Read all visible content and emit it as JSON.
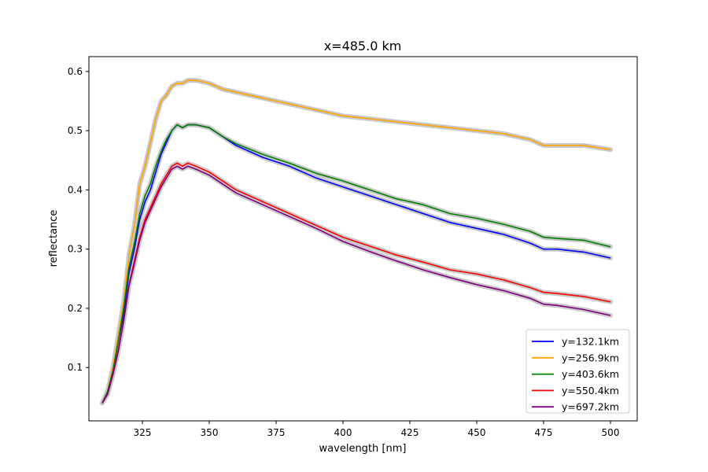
{
  "chart_data": {
    "type": "line",
    "title": "x=485.0 km",
    "xlabel": "wavelength [nm]",
    "ylabel": "reflectance",
    "xlim": [
      305,
      510
    ],
    "ylim": [
      0.01,
      0.625
    ],
    "xticks": [
      325,
      350,
      375,
      400,
      425,
      450,
      475,
      500
    ],
    "yticks": [
      0.1,
      0.2,
      0.3,
      0.4,
      0.5,
      0.6
    ],
    "xtick_labels": [
      "325",
      "350",
      "375",
      "400",
      "425",
      "450",
      "475",
      "500"
    ],
    "ytick_labels": [
      "0.1",
      "0.2",
      "0.3",
      "0.4",
      "0.5",
      "0.6"
    ],
    "grid": false,
    "legend_position": "lower-right",
    "uncertainty_band_color": "#c8c8c8",
    "series": [
      {
        "name": "y=132.1km",
        "color": "#0000ff",
        "x": [
          310,
          312,
          314,
          316,
          318,
          320,
          322,
          324,
          326,
          328,
          330,
          332,
          334,
          336,
          338,
          340,
          342,
          345,
          350,
          355,
          360,
          370,
          380,
          390,
          400,
          410,
          420,
          430,
          440,
          450,
          460,
          470,
          475,
          480,
          490,
          500
        ],
        "y": [
          0.04,
          0.06,
          0.095,
          0.145,
          0.19,
          0.26,
          0.3,
          0.35,
          0.38,
          0.4,
          0.43,
          0.46,
          0.48,
          0.5,
          0.51,
          0.505,
          0.51,
          0.51,
          0.505,
          0.49,
          0.475,
          0.455,
          0.44,
          0.42,
          0.405,
          0.39,
          0.375,
          0.36,
          0.345,
          0.335,
          0.325,
          0.31,
          0.3,
          0.3,
          0.295,
          0.285
        ]
      },
      {
        "name": "y=256.9km",
        "color": "#ffa500",
        "x": [
          310,
          312,
          314,
          316,
          318,
          320,
          322,
          324,
          326,
          328,
          330,
          332,
          334,
          336,
          338,
          340,
          342,
          345,
          350,
          355,
          360,
          370,
          380,
          390,
          400,
          410,
          420,
          430,
          440,
          450,
          460,
          470,
          475,
          480,
          490,
          500
        ],
        "y": [
          0.04,
          0.06,
          0.1,
          0.155,
          0.21,
          0.29,
          0.34,
          0.41,
          0.44,
          0.48,
          0.52,
          0.55,
          0.56,
          0.575,
          0.58,
          0.58,
          0.585,
          0.585,
          0.58,
          0.57,
          0.565,
          0.555,
          0.545,
          0.535,
          0.525,
          0.52,
          0.515,
          0.51,
          0.505,
          0.5,
          0.495,
          0.485,
          0.475,
          0.475,
          0.475,
          0.468
        ]
      },
      {
        "name": "y=403.6km",
        "color": "#008000",
        "x": [
          310,
          312,
          314,
          316,
          318,
          320,
          322,
          324,
          326,
          328,
          330,
          332,
          334,
          336,
          338,
          340,
          342,
          345,
          350,
          355,
          360,
          370,
          380,
          390,
          400,
          410,
          420,
          430,
          440,
          450,
          460,
          470,
          475,
          480,
          490,
          500
        ],
        "y": [
          0.04,
          0.06,
          0.095,
          0.145,
          0.2,
          0.27,
          0.31,
          0.36,
          0.39,
          0.41,
          0.44,
          0.465,
          0.485,
          0.5,
          0.51,
          0.505,
          0.51,
          0.51,
          0.505,
          0.49,
          0.478,
          0.46,
          0.445,
          0.428,
          0.415,
          0.4,
          0.385,
          0.375,
          0.36,
          0.352,
          0.342,
          0.33,
          0.32,
          0.318,
          0.315,
          0.304
        ]
      },
      {
        "name": "y=550.4km",
        "color": "#ff0000",
        "x": [
          310,
          312,
          314,
          316,
          318,
          320,
          322,
          324,
          326,
          328,
          330,
          332,
          334,
          336,
          338,
          340,
          342,
          345,
          350,
          355,
          360,
          370,
          380,
          390,
          400,
          410,
          420,
          430,
          440,
          450,
          460,
          470,
          475,
          480,
          490,
          500
        ],
        "y": [
          0.04,
          0.055,
          0.09,
          0.13,
          0.18,
          0.24,
          0.28,
          0.32,
          0.35,
          0.37,
          0.39,
          0.41,
          0.425,
          0.44,
          0.445,
          0.44,
          0.445,
          0.44,
          0.43,
          0.415,
          0.4,
          0.38,
          0.36,
          0.34,
          0.32,
          0.305,
          0.29,
          0.278,
          0.265,
          0.258,
          0.248,
          0.235,
          0.227,
          0.225,
          0.22,
          0.211
        ]
      },
      {
        "name": "y=697.2km",
        "color": "#800080",
        "x": [
          310,
          312,
          314,
          316,
          318,
          320,
          322,
          324,
          326,
          328,
          330,
          332,
          334,
          336,
          338,
          340,
          342,
          345,
          350,
          355,
          360,
          370,
          380,
          390,
          400,
          410,
          420,
          430,
          440,
          450,
          460,
          470,
          475,
          480,
          490,
          500
        ],
        "y": [
          0.04,
          0.055,
          0.088,
          0.128,
          0.178,
          0.238,
          0.275,
          0.315,
          0.345,
          0.365,
          0.385,
          0.405,
          0.42,
          0.435,
          0.44,
          0.435,
          0.44,
          0.435,
          0.425,
          0.41,
          0.395,
          0.375,
          0.355,
          0.335,
          0.313,
          0.296,
          0.28,
          0.265,
          0.252,
          0.24,
          0.23,
          0.217,
          0.207,
          0.205,
          0.198,
          0.188
        ]
      }
    ]
  }
}
